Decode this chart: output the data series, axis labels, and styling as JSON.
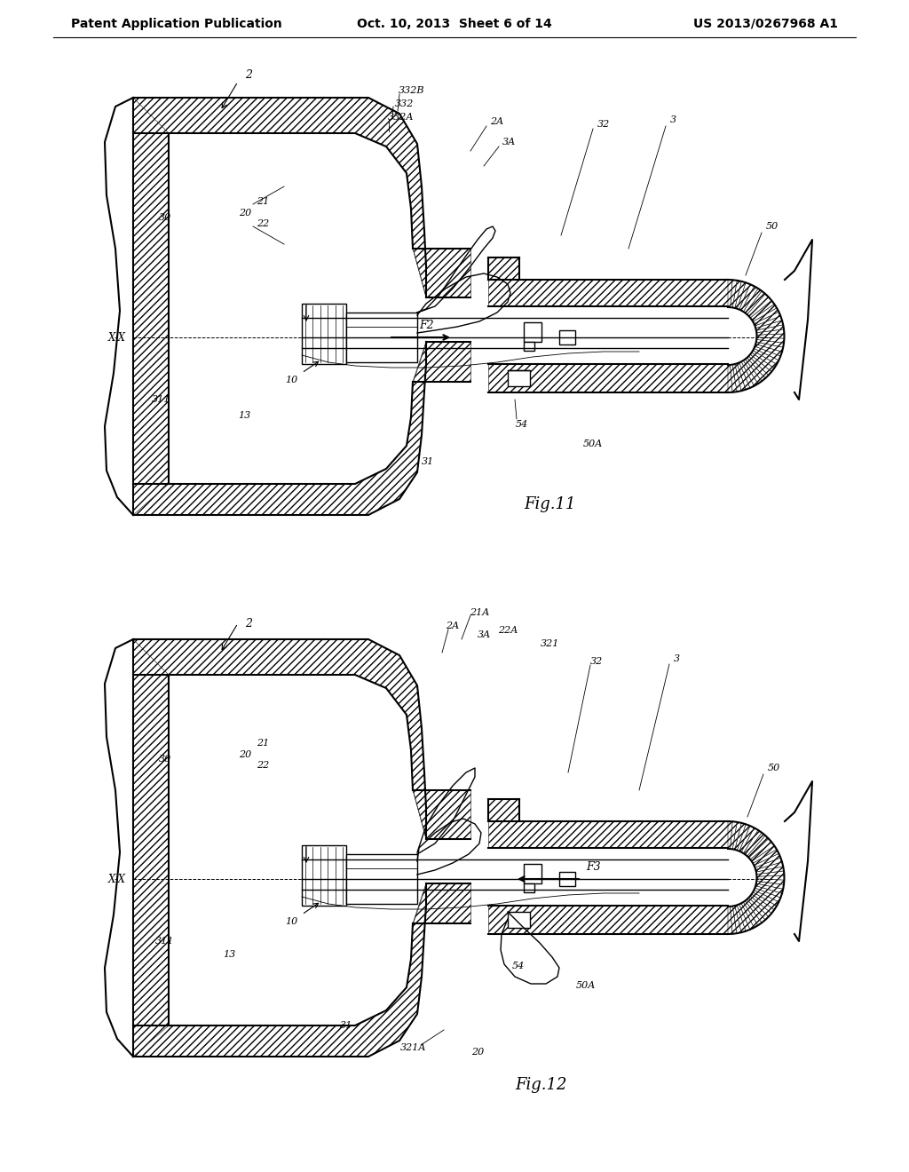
{
  "header_left": "Patent Application Publication",
  "header_mid": "Oct. 10, 2013  Sheet 6 of 14",
  "header_right": "US 2013/0267968 A1",
  "fig11_label": "Fig.11",
  "fig12_label": "Fig.12",
  "bg_color": "#ffffff",
  "line_color": "#000000"
}
